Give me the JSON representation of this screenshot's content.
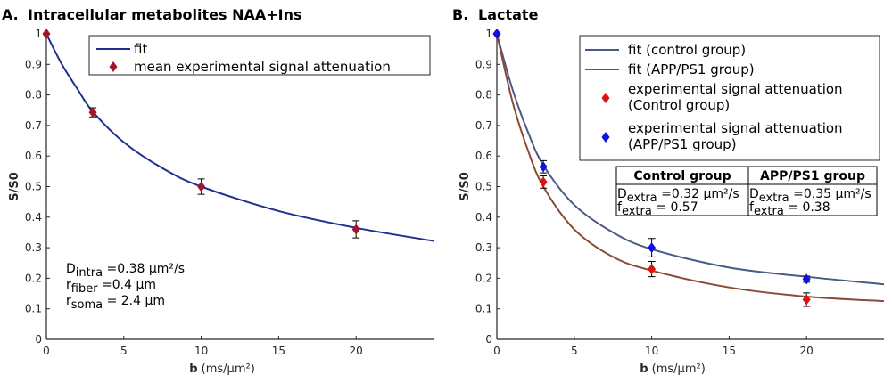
{
  "chart_data": [
    {
      "type": "line",
      "panel_label": "A.",
      "title": "Intracellular metabolites NAA+Ins",
      "xlabel_bold": "b",
      "xlabel_rest": " (ms/µm²)",
      "ylabel": "S/S0",
      "xlim": [
        0,
        25
      ],
      "ylim": [
        0,
        1
      ],
      "xticks": [
        0,
        5,
        10,
        15,
        20
      ],
      "yticks": [
        0,
        0.1,
        0.2,
        0.3,
        0.4,
        0.5,
        0.6,
        0.7,
        0.8,
        0.9,
        1
      ],
      "grid": false,
      "legend_position": "top-right",
      "series": [
        {
          "name": "fit",
          "kind": "line",
          "color": "#1f2f91",
          "x": [
            0,
            1,
            2,
            3,
            5,
            7.5,
            10,
            15,
            20,
            25
          ],
          "y": [
            1,
            0.9,
            0.82,
            0.745,
            0.645,
            0.56,
            0.5,
            0.42,
            0.365,
            0.322
          ]
        },
        {
          "name": "mean experimental signal attenuation",
          "kind": "diamond",
          "color": "#a3142e",
          "x": [
            0,
            3,
            10,
            20
          ],
          "y": [
            1,
            0.743,
            0.5,
            0.36
          ],
          "err": [
            0,
            0.015,
            0.025,
            0.028
          ]
        }
      ],
      "annotations": [
        [
          "D",
          "intra",
          " =0.38 µm²/s"
        ],
        [
          "r",
          "fiber",
          " =0.4 µm"
        ],
        [
          "r",
          "soma",
          " = 2.4 µm"
        ]
      ]
    },
    {
      "type": "line",
      "panel_label": "B.",
      "title": "Lactate",
      "xlabel_bold": "b",
      "xlabel_rest": " (ms/µm²)",
      "ylabel": "S/S0",
      "xlim": [
        0,
        25
      ],
      "ylim": [
        0,
        1
      ],
      "xticks": [
        0,
        5,
        10,
        15,
        20
      ],
      "yticks": [
        0,
        0.1,
        0.2,
        0.3,
        0.4,
        0.5,
        0.6,
        0.7,
        0.8,
        0.9,
        1
      ],
      "grid": false,
      "legend_position": "top-right",
      "series": [
        {
          "name": "fit (control group)",
          "kind": "line",
          "color": "#4a5a85",
          "x": [
            0,
            1,
            2,
            3,
            5,
            7.5,
            10,
            15,
            20,
            25
          ],
          "y": [
            1,
            0.82,
            0.68,
            0.57,
            0.44,
            0.35,
            0.295,
            0.235,
            0.205,
            0.18
          ]
        },
        {
          "name": "fit (APP/PS1 group)",
          "kind": "line",
          "color": "#8b4a35",
          "x": [
            0,
            1,
            2,
            3,
            5,
            7.5,
            10,
            15,
            20,
            25
          ],
          "y": [
            1,
            0.78,
            0.62,
            0.5,
            0.36,
            0.27,
            0.225,
            0.17,
            0.14,
            0.125
          ]
        },
        {
          "name": "experimental signal attenuation (Control group)",
          "legend_lines": [
            "experimental signal attenuation",
            "(Control group)"
          ],
          "kind": "diamond",
          "color": "#e0120f",
          "x": [
            0,
            3,
            10,
            20
          ],
          "y": [
            1,
            0.515,
            0.23,
            0.13
          ],
          "err": [
            0,
            0.02,
            0.025,
            0.022
          ]
        },
        {
          "name": "experimental signal attenuation (APP/PS1 group)",
          "legend_lines": [
            "experimental signal attenuation",
            "(APP/PS1 group)"
          ],
          "kind": "diamond",
          "color": "#1010e0",
          "x": [
            0,
            3,
            10,
            20
          ],
          "y": [
            1,
            0.565,
            0.3,
            0.197
          ],
          "err": [
            0,
            0.02,
            0.03,
            0.01
          ]
        }
      ],
      "table": {
        "headers": [
          "Control group",
          "APP/PS1 group"
        ],
        "rows": [
          [
            [
              "D",
              "extra",
              " =0.32 µm²/s"
            ],
            [
              "f",
              "extra",
              " = 0.57"
            ]
          ],
          [
            [
              "D",
              "extra",
              " =0.35 µm²/s"
            ],
            [
              "f",
              "extra",
              " = 0.38"
            ]
          ]
        ]
      }
    }
  ]
}
